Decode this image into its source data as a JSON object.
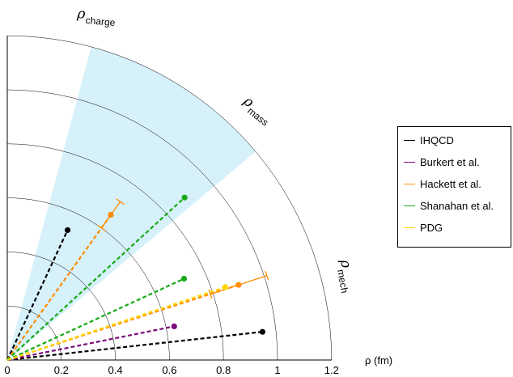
{
  "chart_data": {
    "type": "polar-scatter",
    "title": "",
    "xlabel": "ρ (fm)",
    "radial_range": [
      0,
      1.2
    ],
    "radial_ticks": [
      0,
      0.2,
      0.4,
      0.6,
      0.8,
      1.0,
      1.2
    ],
    "tick_labels": [
      "0",
      "0.2",
      "0.4",
      "0.6",
      "0.8",
      "1",
      "1.2"
    ],
    "angle_range_deg": [
      0,
      90
    ],
    "axis_labels": {
      "charge": {
        "base": "ρ",
        "sub": "charge"
      },
      "mass": {
        "base": "ρ",
        "sub": "mass"
      },
      "mech": {
        "base": "ρ",
        "sub": "mech"
      }
    },
    "band": {
      "angle_min_deg": 40,
      "angle_max_deg": 75,
      "color": "#d6f1fa"
    },
    "series": [
      {
        "name": "IHQCD",
        "color": "#000000",
        "points": [
          {
            "r": 0.53,
            "angle_deg": 65.1
          },
          {
            "r": 0.95,
            "angle_deg": 6.3
          }
        ]
      },
      {
        "name": "Burkert et al.",
        "color": "#7b0b7b",
        "points": [
          {
            "r": 0.63,
            "angle_deg": 11.4
          }
        ]
      },
      {
        "name": "Hackett et al.",
        "color": "#ff8c00",
        "points": [
          {
            "r": 0.66,
            "angle_deg": 54.5,
            "err": 0.06
          },
          {
            "r": 0.9,
            "angle_deg": 18.0,
            "err": 0.11
          }
        ]
      },
      {
        "name": "Shanahan et al.",
        "color": "#16aa16",
        "points": [
          {
            "r": 0.89,
            "angle_deg": 42.5
          },
          {
            "r": 0.72,
            "angle_deg": 24.7
          }
        ]
      },
      {
        "name": "PDG",
        "color": "#ffd700",
        "points": [
          {
            "r": 0.85,
            "angle_deg": 18.5
          }
        ]
      }
    ],
    "legend": {
      "position": "right",
      "entries": [
        "IHQCD",
        "Burkert et al.",
        "Hackett et al.",
        "Shanahan et al.",
        "PDG"
      ]
    }
  }
}
